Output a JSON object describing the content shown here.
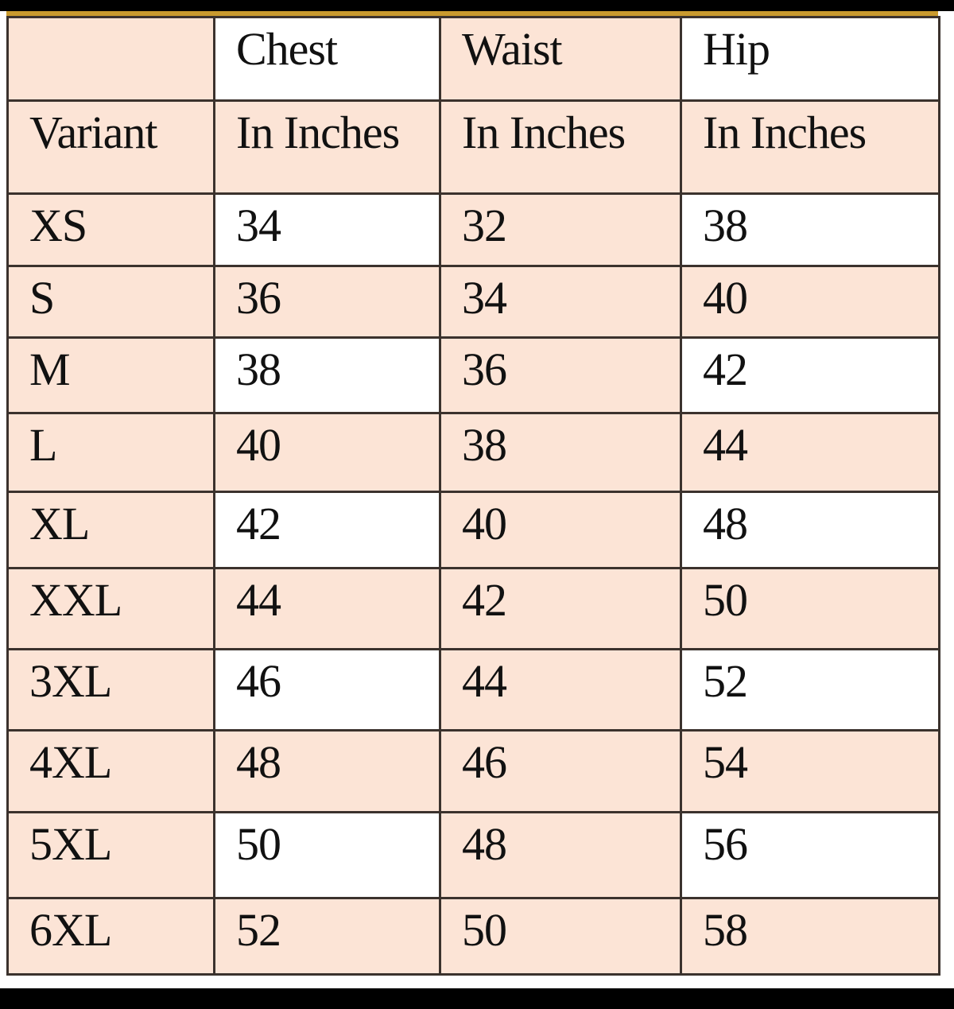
{
  "table": {
    "header_row1": [
      "",
      "Chest",
      "Waist",
      "Hip"
    ],
    "header_row2": [
      "Variant",
      "In Inches",
      "In Inches",
      "In Inches"
    ],
    "rows": [
      [
        "XS",
        "34",
        "32",
        "38"
      ],
      [
        "S",
        "36",
        "34",
        "40"
      ],
      [
        "M",
        "38",
        "36",
        "42"
      ],
      [
        "L",
        "40",
        "38",
        "44"
      ],
      [
        "XL",
        "42",
        "40",
        "48"
      ],
      [
        "XXL",
        "44",
        "42",
        "50"
      ],
      [
        "3XL",
        "46",
        "44",
        "52"
      ],
      [
        "4XL",
        "48",
        "46",
        "54"
      ],
      [
        "5XL",
        "50",
        "48",
        "56"
      ],
      [
        "6XL",
        "52",
        "50",
        "58"
      ]
    ]
  },
  "colors": {
    "shade": "#fce4d6",
    "border": "#3b322d",
    "accent_line": "#c99a2e"
  }
}
